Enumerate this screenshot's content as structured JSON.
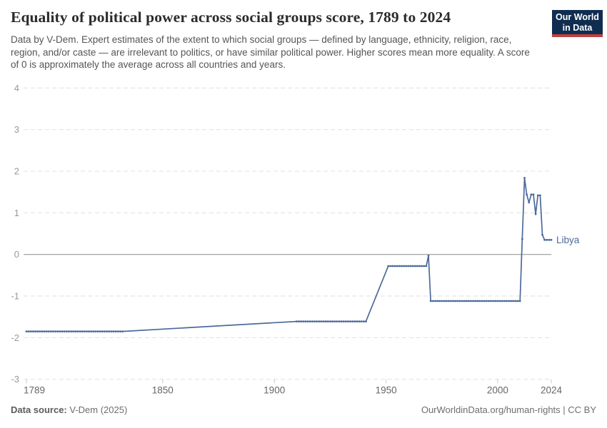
{
  "header": {
    "title": "Equality of political power across social groups score, 1789 to 2024",
    "subtitle": "Data by V-Dem. Expert estimates of the extent to which social groups — defined by language, ethnicity, religion, race, region, and/or caste — are irrelevant to politics, or have similar political power. Higher scores mean more equality. A score of 0 is approximately the average across all countries and years.",
    "logo": {
      "line1": "Our World",
      "line2": "in Data",
      "bg_color": "#102d50",
      "accent_color": "#c0413f"
    }
  },
  "chart_data": {
    "type": "line",
    "title": "Equality of political power across social groups score, 1789 to 2024",
    "xlabel": "",
    "ylabel": "",
    "xlim": [
      1789,
      2024
    ],
    "ylim": [
      -3,
      4
    ],
    "x_ticks": [
      1789,
      1850,
      1900,
      1950,
      2000,
      2024
    ],
    "y_ticks": [
      4,
      3,
      2,
      1,
      0,
      -1,
      -2,
      -3
    ],
    "grid": "horizontal-dashed",
    "grid_color": "#e0e0e0",
    "zero_line_color": "#8c8c8c",
    "tick_color": "#c8c8c8",
    "y_label_color": "#999999",
    "x_label_color": "#666666",
    "legend_position": "end-of-line",
    "series": [
      {
        "name": "Libya",
        "color": "#4C6A9C",
        "runs_year_from_to_value": [
          [
            1789,
            1832,
            -1.85
          ],
          [
            1910,
            1941,
            -1.61
          ],
          [
            1951,
            1968,
            -0.28
          ],
          [
            1969,
            1969,
            -0.03
          ],
          [
            1970,
            2010,
            -1.12
          ],
          [
            2011,
            2011,
            0.37
          ],
          [
            2012,
            2012,
            1.84
          ],
          [
            2013,
            2013,
            1.44
          ],
          [
            2014,
            2014,
            1.25
          ],
          [
            2015,
            2015,
            1.44
          ],
          [
            2016,
            2016,
            1.44
          ],
          [
            2017,
            2017,
            0.97
          ],
          [
            2018,
            2018,
            1.42
          ],
          [
            2019,
            2019,
            1.42
          ],
          [
            2020,
            2020,
            0.47
          ],
          [
            2021,
            2024,
            0.35
          ]
        ]
      }
    ]
  },
  "footer": {
    "datasource_label": "Data source:",
    "datasource_value": "V-Dem (2025)",
    "link": "OurWorldinData.org/human-rights | CC BY"
  }
}
